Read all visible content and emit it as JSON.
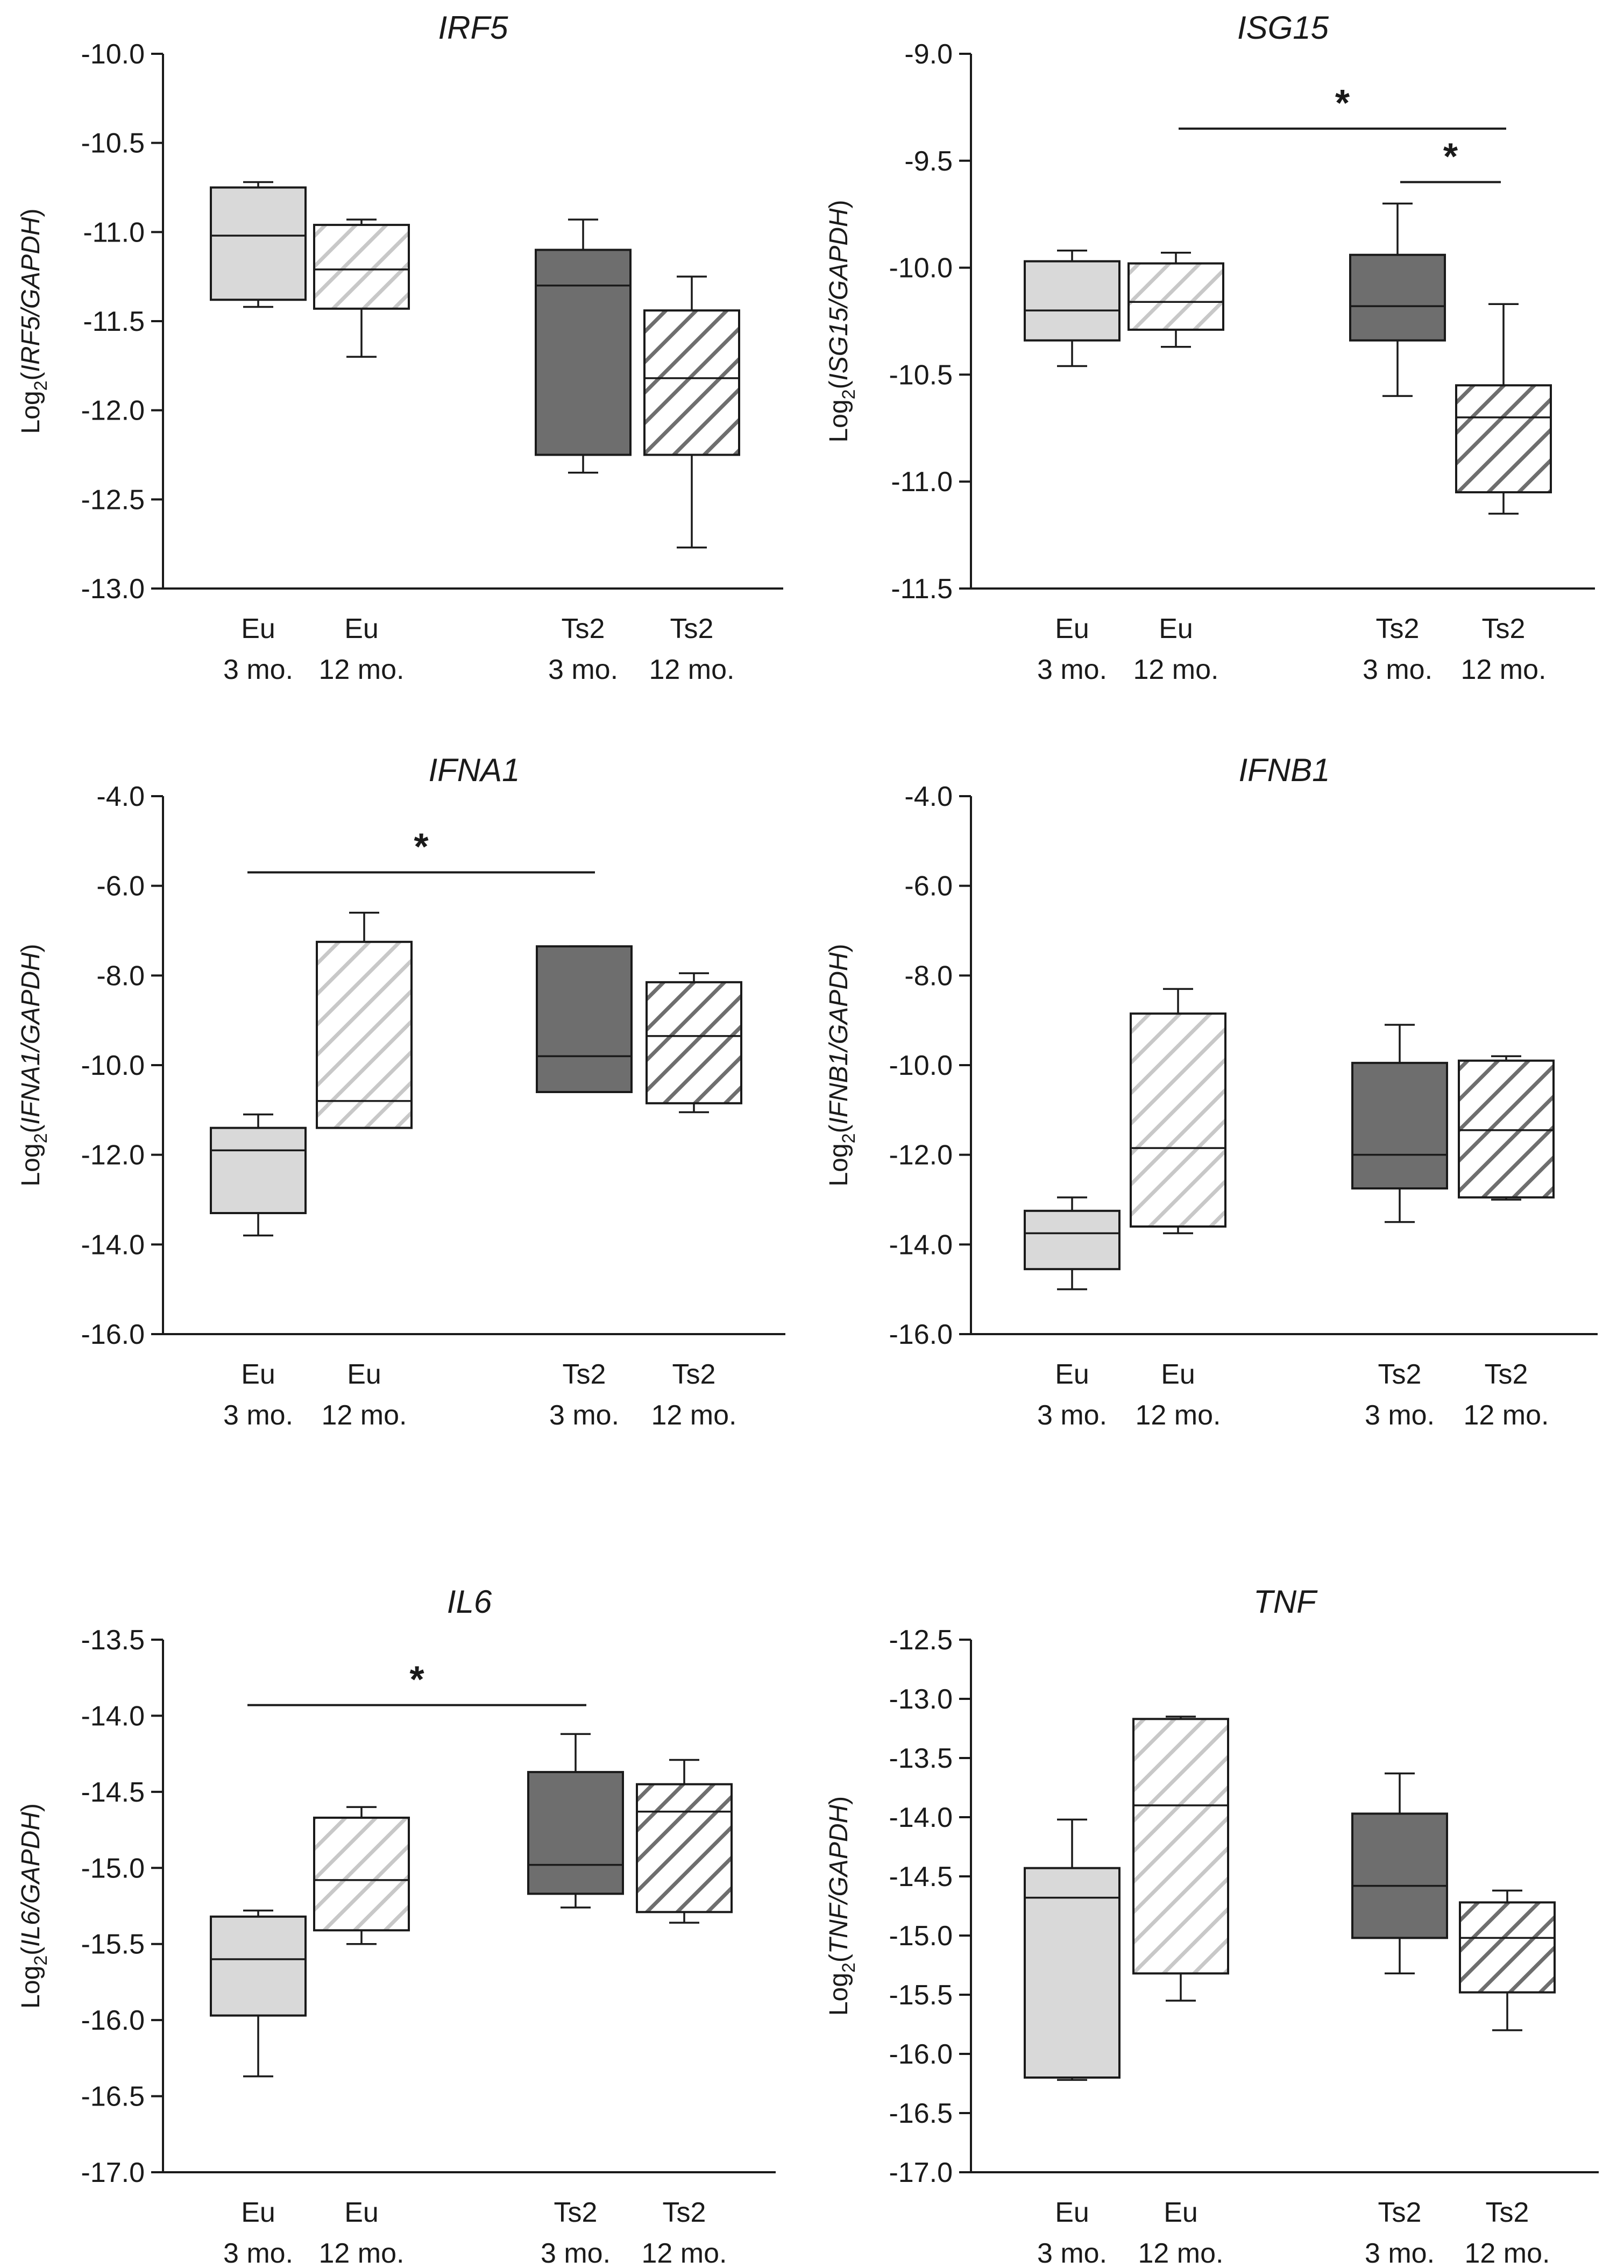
{
  "fill_colors": {
    "light": "#d9d9d9",
    "dark": "#6e6e6e",
    "light_hatch": "#c8c8c8",
    "dark_hatch": "#6e6e6e",
    "stroke": "#1a1a1a"
  },
  "chart_data": [
    {
      "type": "box",
      "title": "IRF5",
      "ylabel": {
        "prefix": "Log",
        "sub": "2",
        "open": "(",
        "gene": "IRF5",
        "ref": "/GAPDH",
        "close": ")"
      },
      "ylim": [
        -13.0,
        -10.0
      ],
      "ytick_step": 0.5,
      "ytick_labels": [
        "-10.0",
        "-10.5",
        "-11.0",
        "-11.5",
        "-12.0",
        "-12.5",
        "-13.0"
      ],
      "categories": [
        {
          "line1": "Eu",
          "line2": "3 mo.",
          "style": "light"
        },
        {
          "line1": "Eu",
          "line2": "12 mo.",
          "style": "light_hatch"
        },
        {
          "line1": "Ts2",
          "line2": "3 mo.",
          "style": "dark"
        },
        {
          "line1": "Ts2",
          "line2": "12 mo.",
          "style": "dark_hatch"
        }
      ],
      "boxes": [
        {
          "min": -11.42,
          "q1": -11.38,
          "median": -11.02,
          "q3": -10.75,
          "max": -10.72
        },
        {
          "min": -11.7,
          "q1": -11.43,
          "median": -11.21,
          "q3": -10.96,
          "max": -10.93
        },
        {
          "min": -12.35,
          "q1": -12.25,
          "median": -11.3,
          "q3": -11.1,
          "max": -10.93
        },
        {
          "min": -12.77,
          "q1": -12.25,
          "median": -11.82,
          "q3": -11.44,
          "max": -11.25
        }
      ],
      "significance": []
    },
    {
      "type": "box",
      "title": "ISG15",
      "ylabel": {
        "prefix": "Log",
        "sub": "2",
        "open": "(",
        "gene": "ISG15",
        "ref": "/GAPDH",
        "close": ")"
      },
      "ylim": [
        -11.5,
        -9.0
      ],
      "ytick_step": 0.5,
      "ytick_labels": [
        "-9.0",
        "-9.5",
        "-10.0",
        "-10.5",
        "-11.0",
        "-11.5"
      ],
      "categories": [
        {
          "line1": "Eu",
          "line2": "3 mo.",
          "style": "light"
        },
        {
          "line1": "Eu",
          "line2": "12 mo.",
          "style": "light_hatch"
        },
        {
          "line1": "Ts2",
          "line2": "3 mo.",
          "style": "dark"
        },
        {
          "line1": "Ts2",
          "line2": "12 mo.",
          "style": "dark_hatch"
        }
      ],
      "boxes": [
        {
          "min": -10.46,
          "q1": -10.34,
          "median": -10.2,
          "q3": -9.97,
          "max": -9.92
        },
        {
          "min": -10.37,
          "q1": -10.29,
          "median": -10.16,
          "q3": -9.98,
          "max": -9.93
        },
        {
          "min": -10.6,
          "q1": -10.34,
          "median": -10.18,
          "q3": -9.94,
          "max": -9.7
        },
        {
          "min": -11.15,
          "q1": -11.05,
          "median": -10.7,
          "q3": -10.55,
          "max": -10.17
        }
      ],
      "significance": [
        {
          "from": 1,
          "to": 3,
          "y": -9.35,
          "label": "*"
        },
        {
          "from": 2,
          "to": 3,
          "y": -9.6,
          "label": "*"
        }
      ]
    },
    {
      "type": "box",
      "title": "IFNA1",
      "ylabel": {
        "prefix": "Log",
        "sub": "2",
        "open": "(",
        "gene": "IFNA1",
        "ref": "/GAPDH",
        "close": ")"
      },
      "ylim": [
        -16.0,
        -4.0
      ],
      "ytick_step": 2.0,
      "ytick_labels": [
        "-4.0",
        "-6.0",
        "-8.0",
        "-10.0",
        "-12.0",
        "-14.0",
        "-16.0"
      ],
      "categories": [
        {
          "line1": "Eu",
          "line2": "3 mo.",
          "style": "light"
        },
        {
          "line1": "Eu",
          "line2": "12 mo.",
          "style": "light_hatch"
        },
        {
          "line1": "Ts2",
          "line2": "3 mo.",
          "style": "dark"
        },
        {
          "line1": "Ts2",
          "line2": "12 mo.",
          "style": "dark_hatch"
        }
      ],
      "boxes": [
        {
          "min": -13.8,
          "q1": -13.3,
          "median": -11.9,
          "q3": -11.4,
          "max": -11.1
        },
        {
          "min": -11.4,
          "q1": -11.4,
          "median": -10.8,
          "q3": -7.25,
          "max": -6.6
        },
        {
          "min": -10.6,
          "q1": -10.6,
          "median": -9.8,
          "q3": -7.35,
          "max": -7.35
        },
        {
          "min": -11.05,
          "q1": -10.85,
          "median": -9.35,
          "q3": -8.15,
          "max": -7.95
        }
      ],
      "significance": [
        {
          "from": 0,
          "to": 2,
          "y": -5.7,
          "label": "*"
        }
      ]
    },
    {
      "type": "box",
      "title": "IFNB1",
      "ylabel": {
        "prefix": "Log",
        "sub": "2",
        "open": "(",
        "gene": "IFNB1",
        "ref": "/GAPDH",
        "close": ")"
      },
      "ylim": [
        -16.0,
        -4.0
      ],
      "ytick_step": 2.0,
      "ytick_labels": [
        "-4.0",
        "-6.0",
        "-8.0",
        "-10.0",
        "-12.0",
        "-14.0",
        "-16.0"
      ],
      "categories": [
        {
          "line1": "Eu",
          "line2": "3 mo.",
          "style": "light"
        },
        {
          "line1": "Eu",
          "line2": "12 mo.",
          "style": "light_hatch"
        },
        {
          "line1": "Ts2",
          "line2": "3 mo.",
          "style": "dark"
        },
        {
          "line1": "Ts2",
          "line2": "12 mo.",
          "style": "dark_hatch"
        }
      ],
      "boxes": [
        {
          "min": -15.0,
          "q1": -14.55,
          "median": -13.75,
          "q3": -13.25,
          "max": -12.95
        },
        {
          "min": -13.75,
          "q1": -13.6,
          "median": -11.85,
          "q3": -8.85,
          "max": -8.3
        },
        {
          "min": -13.5,
          "q1": -12.75,
          "median": -12.0,
          "q3": -9.95,
          "max": -9.1
        },
        {
          "min": -13.0,
          "q1": -12.95,
          "median": -11.45,
          "q3": -9.9,
          "max": -9.8
        }
      ],
      "significance": []
    },
    {
      "type": "box",
      "title": "IL6",
      "ylabel": {
        "prefix": "Log",
        "sub": "2",
        "open": "(",
        "gene": "IL6",
        "ref": "/GAPDH",
        "close": ")"
      },
      "ylim": [
        -17.0,
        -13.5
      ],
      "ytick_step": 0.5,
      "ytick_labels": [
        "-13.5",
        "-14.0",
        "-14.5",
        "-15.0",
        "-15.5",
        "-16.0",
        "-16.5",
        "-17.0"
      ],
      "categories": [
        {
          "line1": "Eu",
          "line2": "3 mo.",
          "style": "light"
        },
        {
          "line1": "Eu",
          "line2": "12 mo.",
          "style": "light_hatch"
        },
        {
          "line1": "Ts2",
          "line2": "3 mo.",
          "style": "dark"
        },
        {
          "line1": "Ts2",
          "line2": "12 mo.",
          "style": "dark_hatch"
        }
      ],
      "boxes": [
        {
          "min": -16.37,
          "q1": -15.97,
          "median": -15.6,
          "q3": -15.32,
          "max": -15.28
        },
        {
          "min": -15.5,
          "q1": -15.41,
          "median": -15.08,
          "q3": -14.67,
          "max": -14.6
        },
        {
          "min": -15.26,
          "q1": -15.17,
          "median": -14.98,
          "q3": -14.37,
          "max": -14.12
        },
        {
          "min": -15.36,
          "q1": -15.29,
          "median": -14.63,
          "q3": -14.45,
          "max": -14.29
        }
      ],
      "significance": [
        {
          "from": 0,
          "to": 2,
          "y": -13.93,
          "label": "*"
        }
      ]
    },
    {
      "type": "box",
      "title": "TNF",
      "ylabel": {
        "prefix": "Log",
        "sub": "2",
        "open": "(",
        "gene": "TNF",
        "ref": "/GAPDH",
        "close": ")"
      },
      "ylim": [
        -17.0,
        -12.5
      ],
      "ytick_step": 0.5,
      "ytick_labels": [
        "-12.5",
        "-13.0",
        "-13.5",
        "-14.0",
        "-14.5",
        "-15.0",
        "-15.5",
        "-16.0",
        "-16.5",
        "-17.0"
      ],
      "categories": [
        {
          "line1": "Eu",
          "line2": "3 mo.",
          "style": "light"
        },
        {
          "line1": "Eu",
          "line2": "12 mo.",
          "style": "light_hatch"
        },
        {
          "line1": "Ts2",
          "line2": "3 mo.",
          "style": "dark"
        },
        {
          "line1": "Ts2",
          "line2": "12 mo.",
          "style": "dark_hatch"
        }
      ],
      "boxes": [
        {
          "min": -16.22,
          "q1": -16.2,
          "median": -14.68,
          "q3": -14.43,
          "max": -14.02
        },
        {
          "min": -15.55,
          "q1": -15.32,
          "median": -13.9,
          "q3": -13.17,
          "max": -13.15
        },
        {
          "min": -15.32,
          "q1": -15.02,
          "median": -14.58,
          "q3": -13.97,
          "max": -13.63
        },
        {
          "min": -15.8,
          "q1": -15.48,
          "median": -15.02,
          "q3": -14.72,
          "max": -14.62
        }
      ],
      "significance": []
    }
  ]
}
